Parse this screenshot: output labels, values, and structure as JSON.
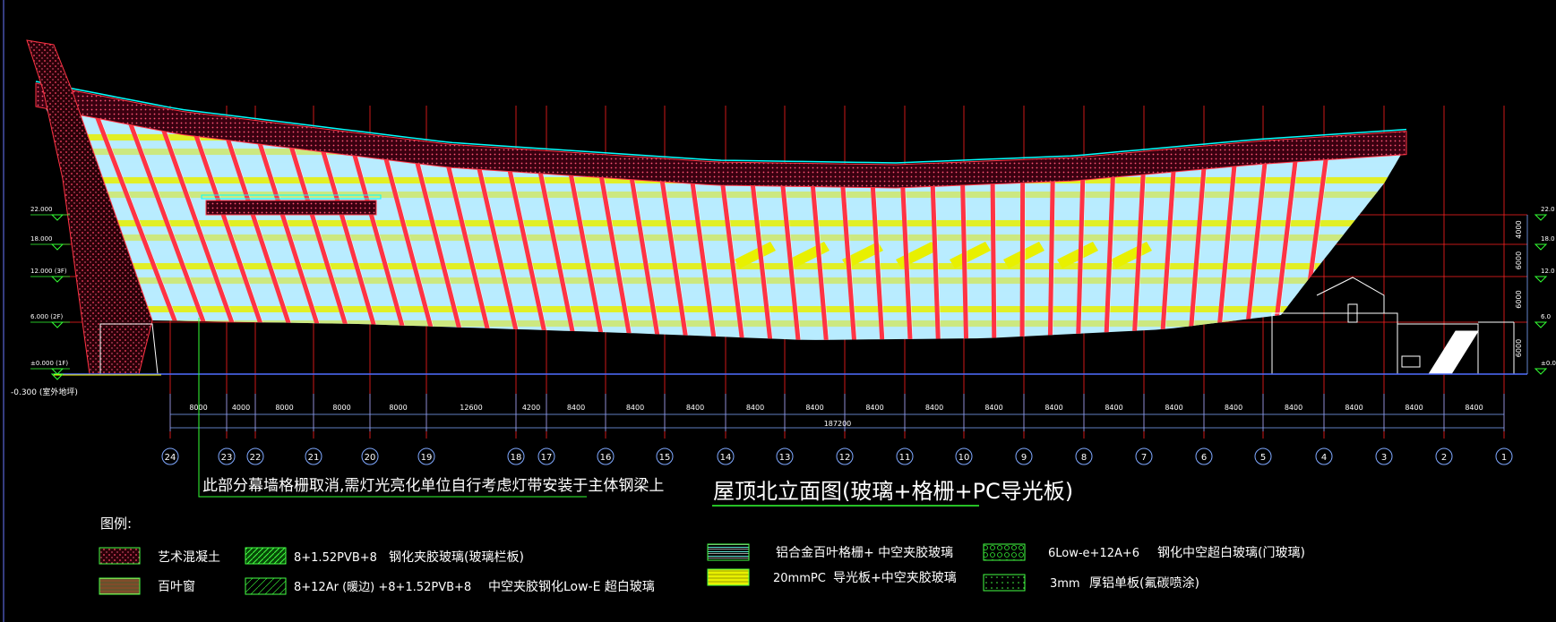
{
  "title": "屋顶北立面图(玻璃+格栅+PC导光板)",
  "note": "此部分幕墙格栅取消,需灯光亮化单位自行考虑灯带安装于主体钢梁上",
  "legend": {
    "heading": "图例:",
    "items": [
      {
        "pattern": "art-concrete",
        "label": "艺术混凝土"
      },
      {
        "pattern": "louver",
        "label": "百叶窗"
      },
      {
        "pattern": "laminated-glass",
        "code": "8+1.52PVB+8",
        "label": "钢化夹胶玻璃(玻璃栏板)"
      },
      {
        "pattern": "insulated-glass",
        "code": "8+12Ar (暖边) +8+1.52PVB+8",
        "label": "中空夹胶钢化Low-E 超白玻璃"
      },
      {
        "pattern": "aluminum-louver",
        "label": "铝合金百叶格栅+ 中空夹胶玻璃"
      },
      {
        "pattern": "pc-panel",
        "code": "20mmPC",
        "label": "导光板+中空夹胶玻璃"
      },
      {
        "pattern": "door-glass",
        "code": "6Low-e+12A+6",
        "label": "钢化中空超白玻璃(门玻璃)"
      },
      {
        "pattern": "aluminum-panel",
        "code": "3mm",
        "label": "厚铝单板(氟碳喷涂)"
      }
    ]
  },
  "levels_left": [
    "22.000",
    "18.000",
    "12.000 (3F)",
    "6.000 (2F)",
    "±0.000 (1F)"
  ],
  "outdoor_level": "-0.300 (室外地坪)",
  "levels_right": [
    "22.0",
    "18.0",
    "12.0",
    "6.0",
    "±0.0"
  ],
  "vertical_dims": [
    "4000",
    "6000",
    "6000",
    "6000"
  ],
  "spans": [
    "8000",
    "4000",
    "8000",
    "8000",
    "8000",
    "12600",
    "4200",
    "8400",
    "8400",
    "8400",
    "8400",
    "8400",
    "8400",
    "8400",
    "8400",
    "8400",
    "8400",
    "8400",
    "8400",
    "8400",
    "8400",
    "8400",
    "8400"
  ],
  "total": "187200",
  "axes": [
    "24",
    "23",
    "22",
    "21",
    "20",
    "19",
    "18",
    "17",
    "16",
    "15",
    "14",
    "13",
    "12",
    "11",
    "10",
    "9",
    "8",
    "7",
    "6",
    "5",
    "4",
    "3",
    "2",
    "1"
  ],
  "colors": {
    "background": "#000000",
    "structure": "#ff3344",
    "grid": "#ff2020",
    "glass": "#b8ecff",
    "louver": "#e8f000",
    "roof-edge": "#00ffff",
    "dimension": "#7fa8ff",
    "note-line": "#33ff33",
    "ground": "#4f6dff"
  }
}
